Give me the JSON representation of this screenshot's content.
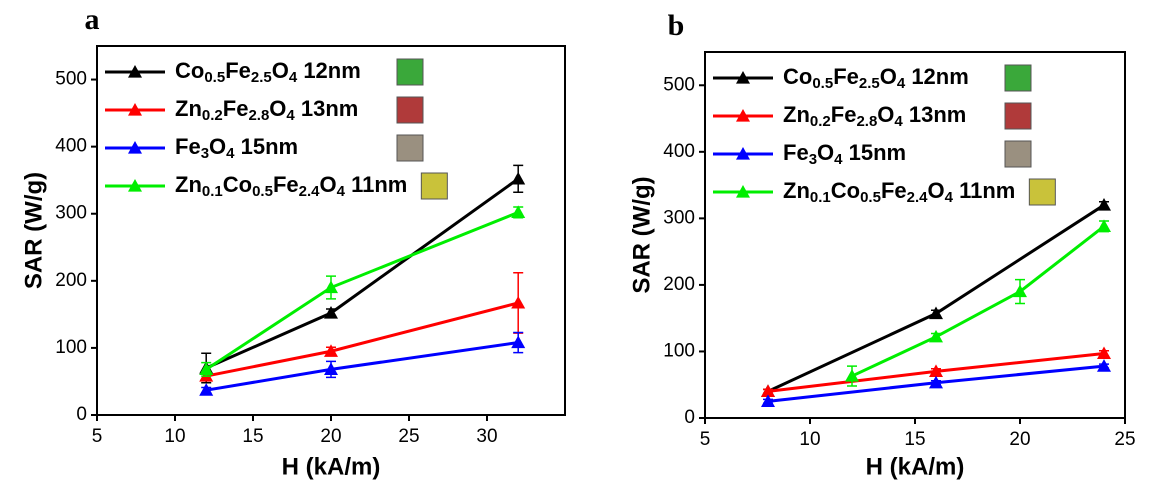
{
  "chart_data": [
    {
      "type": "line",
      "title": "a",
      "x_label": "H (kA/m)",
      "y_label": "SAR (W/g)",
      "xlim": [
        5,
        35
      ],
      "xticks": [
        5,
        10,
        15,
        20,
        25,
        30
      ],
      "ylim": [
        0,
        550
      ],
      "yticks": [
        0,
        100,
        200,
        300,
        400,
        500
      ],
      "legend": "upper left",
      "series": [
        {
          "name": "Co0.5Fe2.5O4 12nm",
          "color": "#000000",
          "x": [
            12,
            20,
            32
          ],
          "values": [
            70,
            152,
            352
          ],
          "errors": [
            22,
            6,
            20
          ]
        },
        {
          "name": "Zn0.2Fe2.8O4 13nm",
          "color": "#ff0000",
          "x": [
            12,
            20,
            32
          ],
          "values": [
            58,
            95,
            167
          ],
          "errors": [
            5,
            6,
            45
          ]
        },
        {
          "name": "Fe3O4 15nm",
          "color": "#0000ff",
          "x": [
            12,
            20,
            32
          ],
          "values": [
            37,
            68,
            108
          ],
          "errors": [
            4,
            12,
            15
          ]
        },
        {
          "name": "Zn0.1Co0.5Fe2.4O4 11nm",
          "color": "#00ee00",
          "x": [
            12,
            20,
            32
          ],
          "values": [
            68,
            190,
            302
          ],
          "errors": [
            10,
            17,
            8
          ]
        }
      ]
    },
    {
      "type": "line",
      "title": "b",
      "x_label": "H (kA/m)",
      "y_label": "SAR (W/g)",
      "xlim": [
        5,
        25
      ],
      "xticks": [
        5,
        10,
        15,
        20,
        25
      ],
      "ylim": [
        0,
        550
      ],
      "yticks": [
        0,
        100,
        200,
        300,
        400,
        500
      ],
      "legend": "upper left",
      "series": [
        {
          "name": "Co0.5Fe2.5O4 12nm",
          "color": "#000000",
          "x": [
            8,
            16,
            24
          ],
          "values": [
            40,
            157,
            320
          ],
          "errors": [
            3,
            5,
            5
          ]
        },
        {
          "name": "Zn0.2Fe2.8O4 13nm",
          "color": "#ff0000",
          "x": [
            8,
            16,
            24
          ],
          "values": [
            40,
            70,
            97
          ],
          "errors": [
            3,
            4,
            4
          ]
        },
        {
          "name": "Fe3O4 15nm",
          "color": "#0000ff",
          "x": [
            8,
            16,
            24
          ],
          "values": [
            25,
            53,
            78
          ],
          "errors": [
            3,
            3,
            3
          ]
        },
        {
          "name": "Zn0.1Co0.5Fe2.4O4 11nm",
          "color": "#00ee00",
          "x": [
            12,
            16,
            20,
            24
          ],
          "values": [
            63,
            122,
            190,
            288
          ],
          "errors": [
            15,
            5,
            18,
            8
          ]
        }
      ]
    }
  ]
}
